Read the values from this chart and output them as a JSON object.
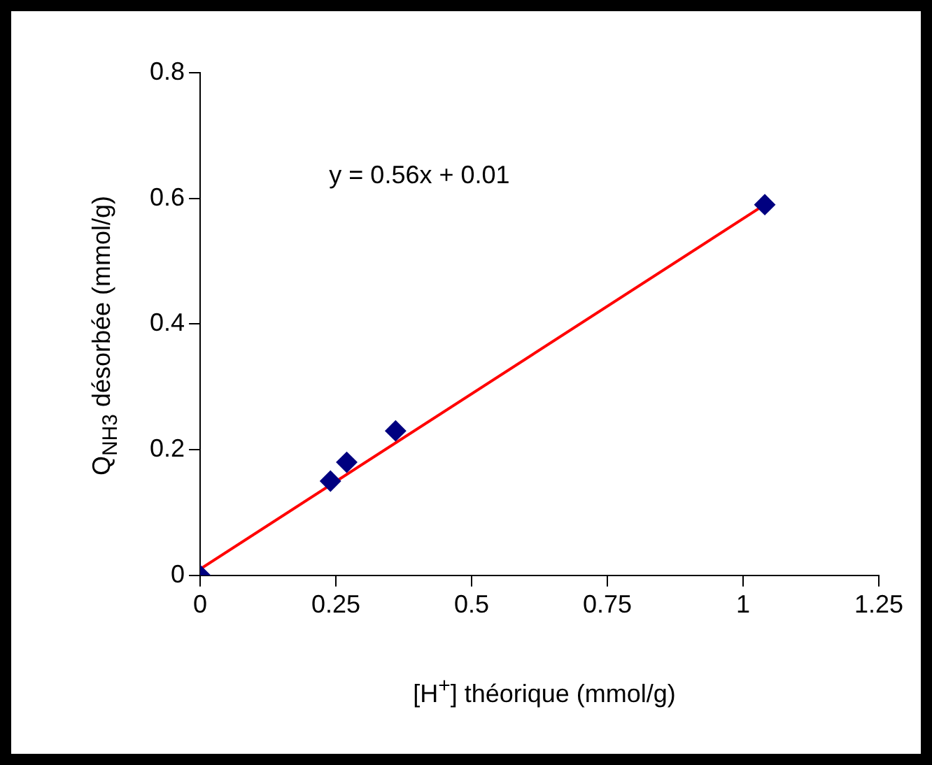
{
  "chart_data": {
    "type": "scatter",
    "xlabel": "[H$^{+}$] théorique (mmol/g)",
    "ylabel": "Q$_{NH3}$ désorbée (mmol/g)",
    "annotations": [
      "y = 0.56x + 0.01"
    ],
    "xlim": [
      0,
      1.25
    ],
    "xticks": [
      0,
      0.25,
      0.5,
      0.75,
      1,
      1.25
    ],
    "ylim": [
      0,
      0.8
    ],
    "yticks": [
      0,
      0.2,
      0.4,
      0.6,
      0.8
    ],
    "grid": false,
    "legend": false,
    "marker": "diamond",
    "series": [
      {
        "type": "scatter",
        "color": "#000080",
        "x": [
          0,
          0.24,
          0.27,
          0.36,
          1.04
        ],
        "values": [
          0,
          0.15,
          0.18,
          0.23,
          0.59
        ]
      },
      {
        "type": "line",
        "color": "#ff0000",
        "marker": "none",
        "line_style": "solid",
        "x": [
          0,
          1.04
        ],
        "values": [
          0.01,
          0.59
        ]
      }
    ]
  }
}
